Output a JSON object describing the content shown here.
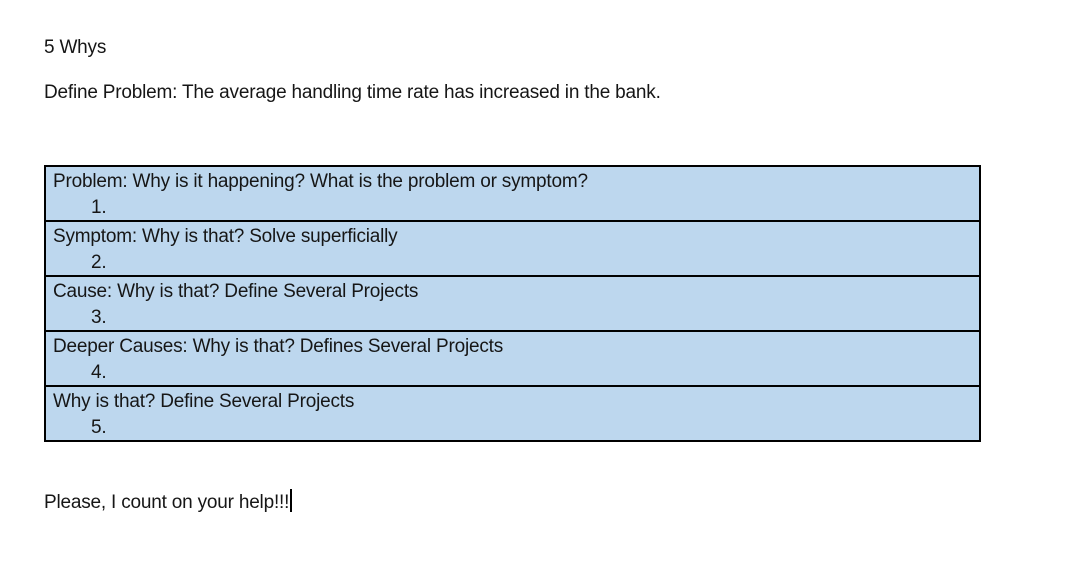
{
  "document": {
    "title": "5 Whys",
    "define_problem": "Define Problem: The average handling time rate has increased in the bank.",
    "closing": "Please, I count on your help!!!",
    "table": {
      "fill_color": "#BDD7EE",
      "border_color": "#000000",
      "rows": [
        {
          "prompt": "Problem: Why is it happening? What is the problem or symptom?",
          "number": "1."
        },
        {
          "prompt": "Symptom: Why is that? Solve superficially",
          "number": "2."
        },
        {
          "prompt": "Cause: Why is that? Define Several Projects",
          "number": "3."
        },
        {
          "prompt": "Deeper Causes: Why is that? Defines Several Projects",
          "number": "4."
        },
        {
          "prompt": "Why is that? Define Several Projects",
          "number": "5."
        }
      ]
    }
  }
}
